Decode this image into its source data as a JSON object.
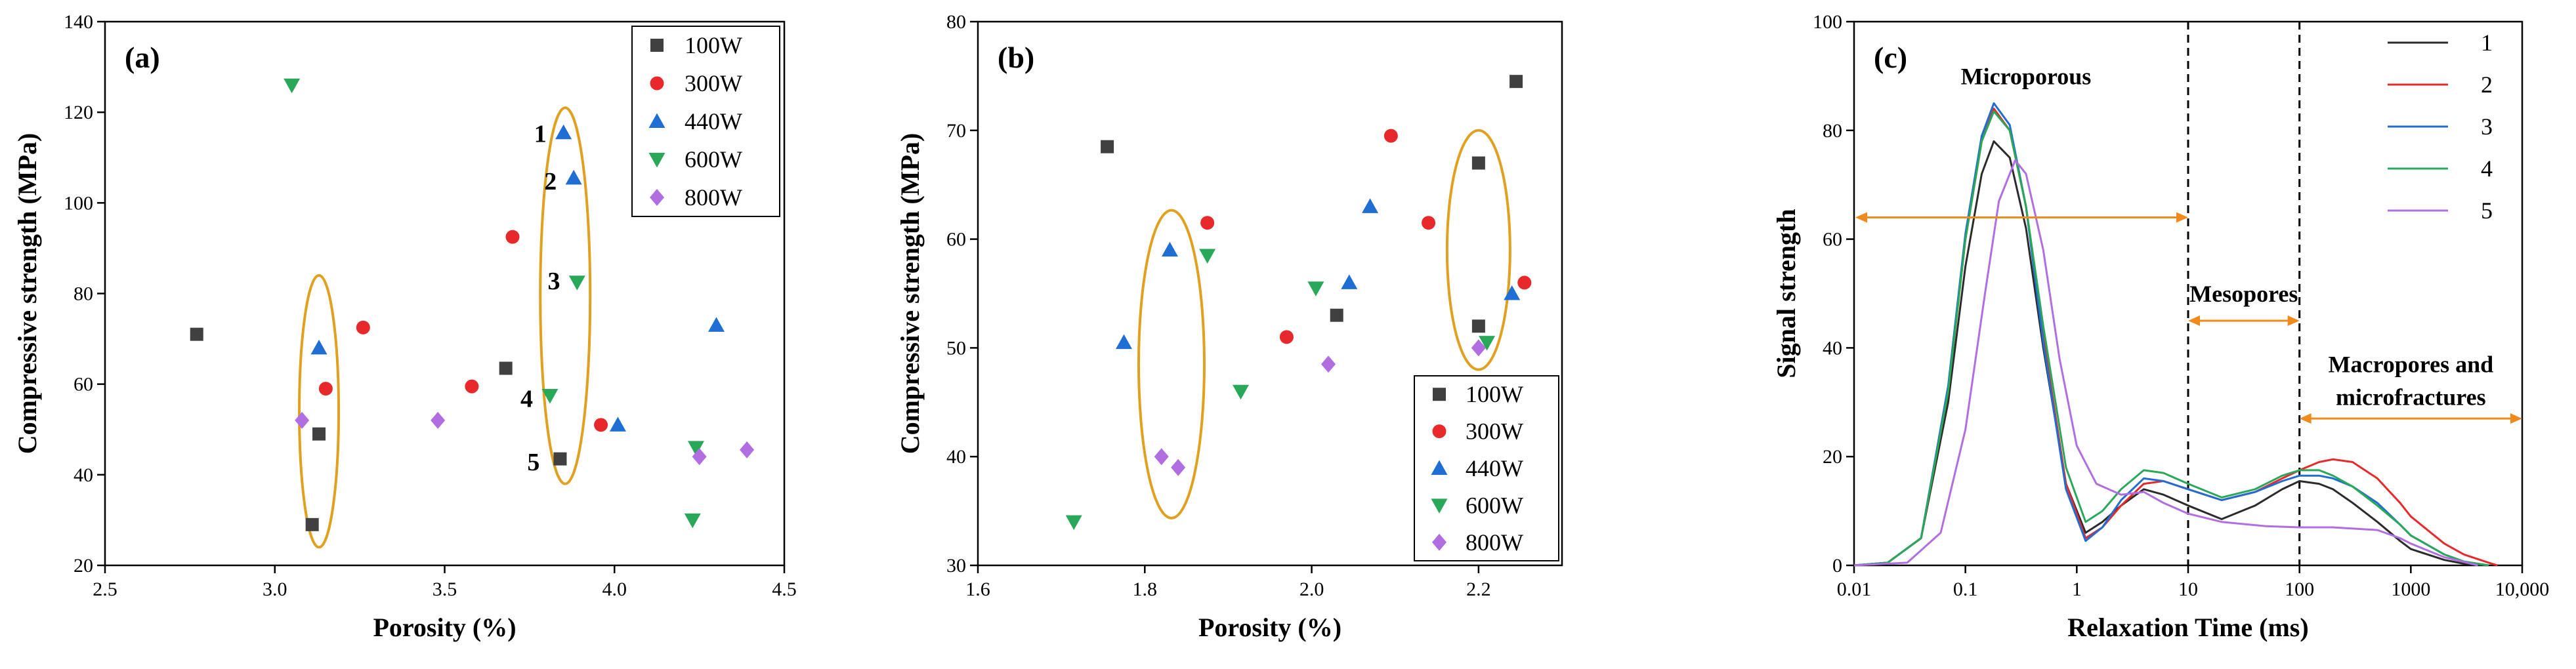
{
  "chart_data": [
    {
      "type": "scatter",
      "panel_label": "(a)",
      "xlabel": "Porosity (%)",
      "ylabel": "Compressive strength (MPa)",
      "xlim": [
        2.5,
        4.5
      ],
      "ylim": [
        20,
        140
      ],
      "xticks": [
        "2.5",
        "3.0",
        "3.5",
        "4.0",
        "4.5"
      ],
      "yticks": [
        "20",
        "40",
        "60",
        "80",
        "100",
        "120",
        "140"
      ],
      "legend_position": "top-right",
      "series": [
        {
          "name": "100W",
          "color": "#404040",
          "marker": "square",
          "x": [
            2.77,
            3.13,
            3.11,
            3.68,
            3.84
          ],
          "y": [
            71,
            49,
            29,
            63.5,
            43.5
          ]
        },
        {
          "name": "300W",
          "color": "#e8292b",
          "marker": "circle",
          "x": [
            3.15,
            3.26,
            3.58,
            3.7,
            3.96
          ],
          "y": [
            59,
            72.5,
            59.5,
            92.5,
            51
          ]
        },
        {
          "name": "440W",
          "color": "#1f6ed4",
          "marker": "triangle-up",
          "x": [
            3.13,
            3.85,
            3.88,
            4.01,
            4.3
          ],
          "y": [
            68,
            115.5,
            105.5,
            51,
            73
          ]
        },
        {
          "name": "600W",
          "color": "#2aa85a",
          "marker": "triangle-down",
          "x": [
            3.05,
            3.89,
            3.81,
            4.24,
            4.23
          ],
          "y": [
            126,
            82.5,
            57.5,
            46,
            30
          ]
        },
        {
          "name": "800W",
          "color": "#b06ee0",
          "marker": "diamond",
          "x": [
            3.08,
            3.48,
            4.25,
            4.39
          ],
          "y": [
            52,
            52,
            44,
            45.5
          ]
        }
      ],
      "annotations": [
        "1",
        "2",
        "3",
        "4",
        "5"
      ]
    },
    {
      "type": "scatter",
      "panel_label": "(b)",
      "xlabel": "Porosity (%)",
      "ylabel": "Compressive strength (MPa)",
      "xlim": [
        1.6,
        2.3
      ],
      "ylim": [
        30,
        80
      ],
      "xticks": [
        "1.6",
        "1.8",
        "2.0",
        "2.2"
      ],
      "yticks": [
        "30",
        "40",
        "50",
        "60",
        "70",
        "80"
      ],
      "legend_position": "bottom-right",
      "series": [
        {
          "name": "100W",
          "color": "#404040",
          "marker": "square",
          "x": [
            1.755,
            2.03,
            2.2,
            2.2,
            2.245
          ],
          "y": [
            68.5,
            53,
            67,
            52,
            74.5
          ]
        },
        {
          "name": "300W",
          "color": "#e8292b",
          "marker": "circle",
          "x": [
            1.875,
            1.97,
            2.095,
            2.14,
            2.255
          ],
          "y": [
            61.5,
            51,
            69.5,
            61.5,
            56
          ]
        },
        {
          "name": "440W",
          "color": "#1f6ed4",
          "marker": "triangle-up",
          "x": [
            1.775,
            1.83,
            2.045,
            2.07,
            2.24
          ],
          "y": [
            50.5,
            59,
            56,
            63,
            55
          ]
        },
        {
          "name": "600W",
          "color": "#2aa85a",
          "marker": "triangle-down",
          "x": [
            1.715,
            1.875,
            1.915,
            2.005,
            2.21
          ],
          "y": [
            34,
            58.5,
            46,
            55.5,
            50.5
          ]
        },
        {
          "name": "800W",
          "color": "#b06ee0",
          "marker": "diamond",
          "x": [
            1.82,
            1.84,
            2.02,
            2.2
          ],
          "y": [
            40,
            39,
            48.5,
            50
          ]
        }
      ]
    },
    {
      "type": "line",
      "panel_label": "(c)",
      "xlabel": "Relaxation Time (ms)",
      "ylabel": "Signal strength",
      "xscale": "log",
      "xlim": [
        0.01,
        10000
      ],
      "ylim": [
        0,
        100
      ],
      "xticks": [
        "0.01",
        "0.1",
        "1",
        "10",
        "100",
        "1000",
        "10,000"
      ],
      "yticks": [
        "0",
        "20",
        "40",
        "60",
        "80",
        "100"
      ],
      "legend_position": "top-right",
      "dashed_vlines": [
        10,
        100
      ],
      "regions": [
        {
          "label": "Microporous",
          "from": 0.01,
          "to": 10,
          "y": 64
        },
        {
          "label": "Mesopores",
          "from": 10,
          "to": 100,
          "y": 45
        },
        {
          "label": "Macropores and",
          "label2": "microfractures",
          "from": 100,
          "to": 10000,
          "y": 27
        }
      ],
      "series": [
        {
          "name": "1",
          "color": "#2b2b2b",
          "x": [
            0.01,
            0.02,
            0.04,
            0.07,
            0.1,
            0.14,
            0.18,
            0.25,
            0.35,
            0.5,
            0.8,
            1.2,
            1.7,
            2.5,
            4,
            6,
            10,
            20,
            40,
            70,
            100,
            150,
            200,
            300,
            500,
            800,
            1000,
            2000,
            3000,
            5000
          ],
          "y": [
            0,
            0.5,
            5,
            30,
            55,
            72,
            78,
            75,
            62,
            40,
            15,
            6,
            8,
            11,
            14,
            13,
            11,
            8.5,
            11,
            14,
            15.5,
            15,
            14,
            11.5,
            8,
            4.5,
            3,
            1,
            0.3,
            0
          ]
        },
        {
          "name": "2",
          "color": "#e8292b",
          "x": [
            0.01,
            0.02,
            0.04,
            0.07,
            0.1,
            0.14,
            0.18,
            0.25,
            0.35,
            0.5,
            0.8,
            1.2,
            1.7,
            2.5,
            4,
            6,
            10,
            20,
            40,
            70,
            100,
            150,
            200,
            300,
            500,
            800,
            1000,
            2000,
            3000,
            5000,
            6000
          ],
          "y": [
            0,
            0.5,
            5,
            32,
            60,
            78,
            84,
            80,
            66,
            42,
            15,
            5,
            7,
            11,
            15,
            15.5,
            14,
            12,
            13.5,
            16,
            17.5,
            19,
            19.5,
            19,
            16,
            11.5,
            9,
            4,
            2,
            0.5,
            0
          ]
        },
        {
          "name": "3",
          "color": "#1f6ed4",
          "x": [
            0.01,
            0.02,
            0.04,
            0.07,
            0.1,
            0.14,
            0.18,
            0.25,
            0.35,
            0.5,
            0.8,
            1.2,
            1.7,
            2.5,
            4,
            6,
            10,
            20,
            40,
            70,
            100,
            150,
            200,
            300,
            500,
            800,
            1000,
            2000,
            3000,
            5000
          ],
          "y": [
            0,
            0.5,
            5,
            33,
            61,
            79,
            85,
            81,
            66,
            41,
            14,
            4.5,
            7,
            12,
            16,
            15.5,
            14,
            12,
            13.5,
            15.5,
            16.5,
            16.5,
            16,
            14.5,
            11.5,
            7.5,
            5.5,
            2,
            0.7,
            0
          ]
        },
        {
          "name": "4",
          "color": "#2aa85a",
          "x": [
            0.01,
            0.02,
            0.04,
            0.07,
            0.1,
            0.14,
            0.18,
            0.25,
            0.35,
            0.5,
            0.8,
            1.2,
            1.7,
            2.5,
            4,
            6,
            10,
            20,
            40,
            70,
            100,
            150,
            200,
            300,
            500,
            800,
            1000,
            2000,
            3000,
            5000
          ],
          "y": [
            0,
            0.5,
            5,
            32,
            60,
            78,
            83.5,
            80,
            66,
            44,
            18,
            8,
            10,
            14,
            17.5,
            17,
            15,
            12.5,
            14,
            16.5,
            17.5,
            17.5,
            16.5,
            14.5,
            11,
            7.5,
            5.5,
            2,
            0.7,
            0
          ]
        },
        {
          "name": "5",
          "color": "#b06ee0",
          "x": [
            0.01,
            0.03,
            0.06,
            0.1,
            0.15,
            0.2,
            0.28,
            0.35,
            0.5,
            0.7,
            1,
            1.5,
            2.5,
            4,
            6,
            10,
            20,
            50,
            100,
            200,
            500,
            800,
            1000,
            2000,
            4000
          ],
          "y": [
            0,
            0.5,
            6,
            25,
            50,
            67,
            74.5,
            72,
            58,
            38,
            22,
            15,
            13,
            13.5,
            11.5,
            9.5,
            8,
            7.2,
            7,
            7,
            6.5,
            5,
            4,
            1.5,
            0
          ]
        }
      ]
    }
  ]
}
